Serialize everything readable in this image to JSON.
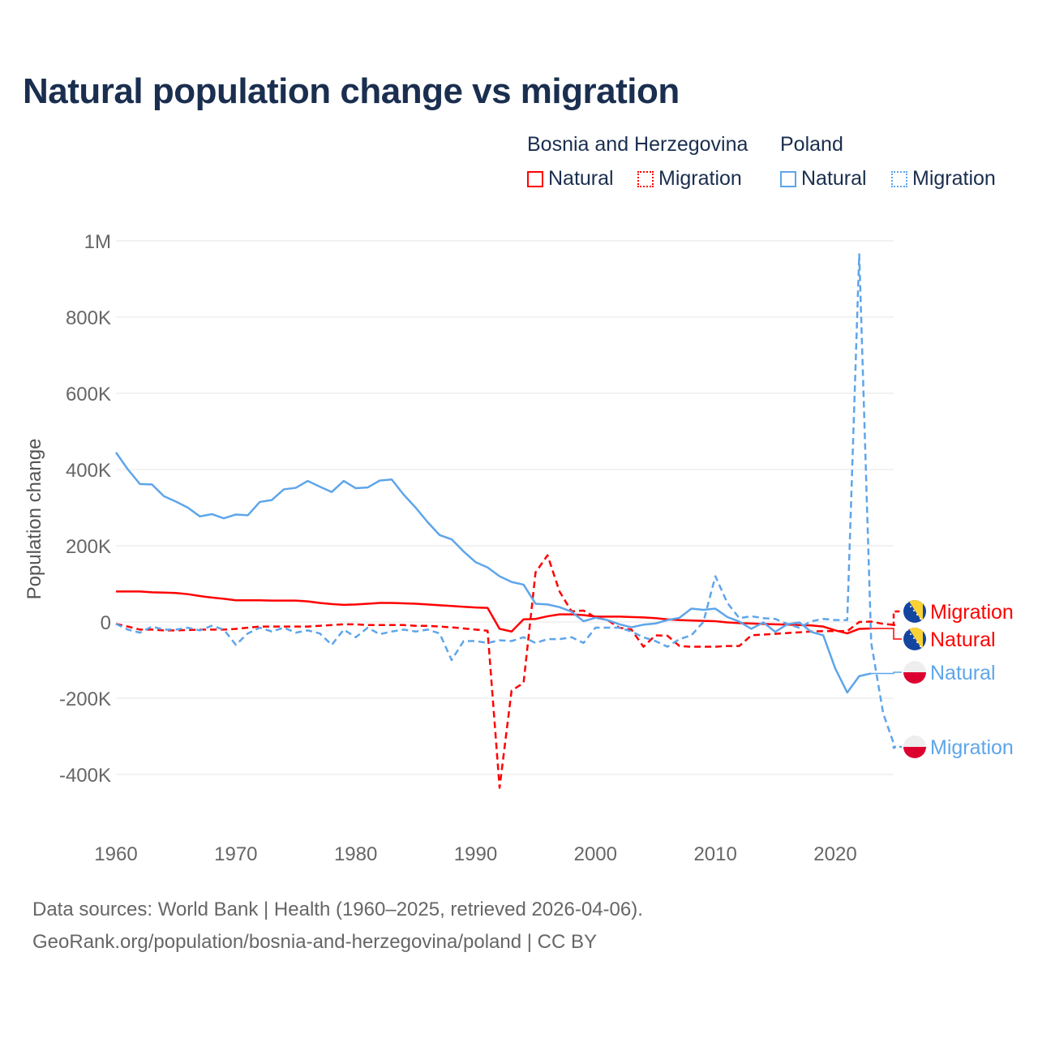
{
  "title": "Natural population change vs migration",
  "legend": {
    "groups": [
      {
        "label": "Bosnia and Herzegovina",
        "items": [
          {
            "label": "Natural",
            "style": "solid"
          },
          {
            "label": "Migration",
            "style": "dotted"
          }
        ],
        "color": "#ff0000"
      },
      {
        "label": "Poland",
        "items": [
          {
            "label": "Natural",
            "style": "solid"
          },
          {
            "label": "Migration",
            "style": "dotted"
          }
        ],
        "color": "#5ea5ea"
      }
    ]
  },
  "chart_data": {
    "type": "line",
    "title": "Natural population change vs migration",
    "xlabel": "",
    "ylabel": "Population change",
    "xlim": [
      1960,
      2025
    ],
    "ylim": [
      -400000,
      1000000
    ],
    "xticks": [
      1960,
      1970,
      1980,
      1990,
      2000,
      2010,
      2020
    ],
    "yticks": [
      {
        "v": 1000000,
        "label": "1M"
      },
      {
        "v": 800000,
        "label": "800K"
      },
      {
        "v": 600000,
        "label": "600K"
      },
      {
        "v": 400000,
        "label": "400K"
      },
      {
        "v": 200000,
        "label": "200K"
      },
      {
        "v": 0,
        "label": "0"
      },
      {
        "v": -200000,
        "label": "-200K"
      },
      {
        "v": -400000,
        "label": "-400K"
      }
    ],
    "grid": true,
    "series": [
      {
        "name": "Bosnia and Herzegovina Natural",
        "end_label": "Natural",
        "country": "bosnia",
        "color": "#ff0000",
        "dash": false,
        "start": 1960,
        "values_k": [
          80,
          80,
          80,
          78,
          77,
          76,
          73,
          68,
          64,
          61,
          57,
          57,
          57,
          56,
          56,
          56,
          54,
          50,
          47,
          45,
          46,
          48,
          50,
          50,
          49,
          48,
          46,
          44,
          42,
          40,
          38,
          37,
          -18,
          -25,
          7,
          8,
          15,
          20,
          20,
          18,
          14,
          14,
          14,
          13,
          12,
          10,
          7,
          5,
          4,
          3,
          2,
          -1,
          -3,
          -4,
          -5,
          -6,
          -7,
          -8,
          -9,
          -12,
          -22,
          -30,
          -18,
          -17
        ]
      },
      {
        "name": "Bosnia and Herzegovina Migration",
        "end_label": "Migration",
        "country": "bosnia",
        "color": "#ff0000",
        "dash": true,
        "start": 1960,
        "values_k": [
          -5,
          -12,
          -20,
          -20,
          -22,
          -22,
          -21,
          -20,
          -20,
          -20,
          -18,
          -15,
          -12,
          -12,
          -12,
          -12,
          -12,
          -10,
          -8,
          -6,
          -6,
          -8,
          -8,
          -8,
          -8,
          -10,
          -10,
          -12,
          -14,
          -17,
          -20,
          -23,
          -435,
          -180,
          -160,
          130,
          175,
          80,
          28,
          30,
          12,
          5,
          -15,
          -20,
          -65,
          -35,
          -36,
          -63,
          -65,
          -65,
          -65,
          -63,
          -63,
          -35,
          -33,
          -31,
          -29,
          -27,
          -25,
          -24,
          -24,
          -24,
          0,
          1,
          -5,
          -8
        ]
      },
      {
        "name": "Poland Natural",
        "end_label": "Natural",
        "country": "poland",
        "color": "#5ea5ea",
        "dash": false,
        "start": 1960,
        "values_k": [
          445,
          400,
          362,
          361,
          330,
          316,
          300,
          277,
          283,
          272,
          282,
          280,
          315,
          320,
          348,
          352,
          370,
          355,
          341,
          370,
          351,
          353,
          371,
          374,
          334,
          300,
          262,
          228,
          217,
          185,
          157,
          143,
          120,
          105,
          98,
          48,
          46,
          39,
          27,
          2,
          11,
          5,
          -6,
          -14,
          -7,
          -4,
          5,
          11,
          35,
          32,
          35,
          13,
          1,
          -18,
          -1,
          -26,
          -6,
          -1,
          -26,
          -35,
          -122,
          -185,
          -142,
          -135
        ]
      },
      {
        "name": "Poland Migration",
        "end_label": "Migration",
        "country": "poland",
        "color": "#5ea5ea",
        "dash": true,
        "start": 1960,
        "values_k": [
          -5,
          -20,
          -28,
          -12,
          -20,
          -20,
          -15,
          -22,
          -10,
          -20,
          -60,
          -30,
          -15,
          -25,
          -15,
          -28,
          -22,
          -30,
          -60,
          -20,
          -40,
          -15,
          -32,
          -25,
          -20,
          -25,
          -20,
          -30,
          -100,
          -50,
          -50,
          -55,
          -48,
          -50,
          -40,
          -55,
          -45,
          -45,
          -40,
          -55,
          -15,
          -15,
          -15,
          -25,
          -40,
          -50,
          -65,
          -45,
          -35,
          0,
          120,
          50,
          10,
          15,
          10,
          8,
          -5,
          -15,
          2,
          8,
          5,
          5,
          965,
          -55,
          -240,
          -330
        ]
      }
    ]
  },
  "source": {
    "line1": "Data sources: World Bank | Health (1960–2025, retrieved 2026-04-06).",
    "line2": "GeoRank.org/population/bosnia-and-herzegovina/poland | CC BY"
  }
}
